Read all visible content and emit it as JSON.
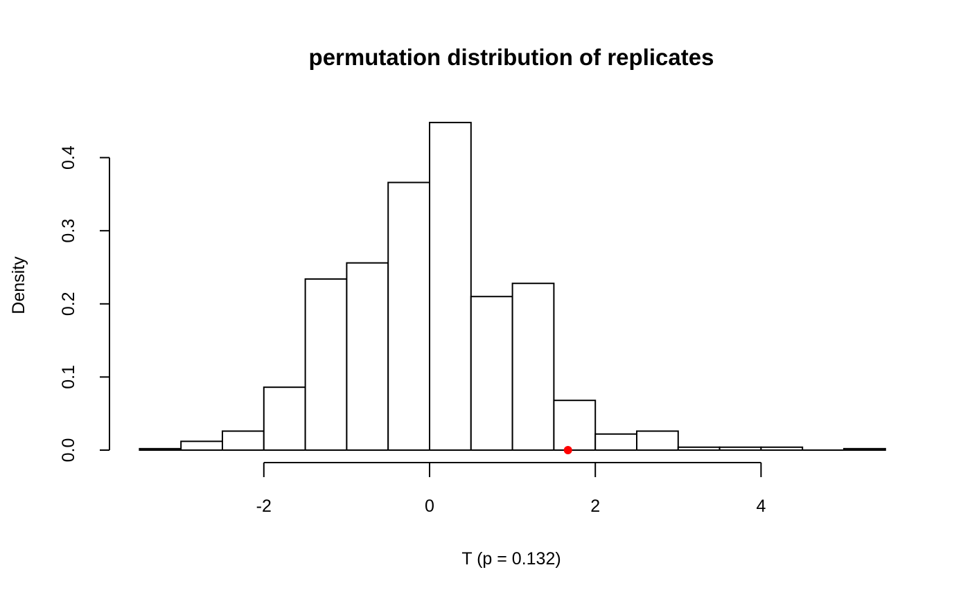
{
  "chart_data": {
    "type": "bar",
    "title": "permutation distribution of replicates",
    "xlabel": "T (p = 0.132)",
    "ylabel": "Density",
    "bin_edges": [
      -3.5,
      -3.0,
      -2.5,
      -2.0,
      -1.5,
      -1.0,
      -0.5,
      0.0,
      0.5,
      1.0,
      1.5,
      2.0,
      2.5,
      3.0,
      3.5,
      4.0,
      4.5,
      5.0,
      5.5
    ],
    "values": [
      0.002,
      0.012,
      0.026,
      0.086,
      0.234,
      0.256,
      0.366,
      0.448,
      0.21,
      0.228,
      0.068,
      0.022,
      0.026,
      0.004,
      0.004,
      0.004,
      0.0,
      0.002
    ],
    "xlim": [
      -3.5,
      5.5
    ],
    "ylim": [
      0,
      0.45
    ],
    "x_ticks": [
      -2,
      0,
      2,
      4
    ],
    "x_tick_labels": [
      "-2",
      "0",
      "2",
      "4"
    ],
    "y_ticks": [
      0.0,
      0.1,
      0.2,
      0.3,
      0.4
    ],
    "y_tick_labels": [
      "0.0",
      "0.1",
      "0.2",
      "0.3",
      "0.4"
    ],
    "grid": false,
    "legend": "none",
    "observed": {
      "x": 1.67,
      "y": 0.0,
      "color": "#ff0000"
    },
    "colors": {
      "bar_fill": "#ffffff",
      "bar_stroke": "#000000"
    }
  }
}
